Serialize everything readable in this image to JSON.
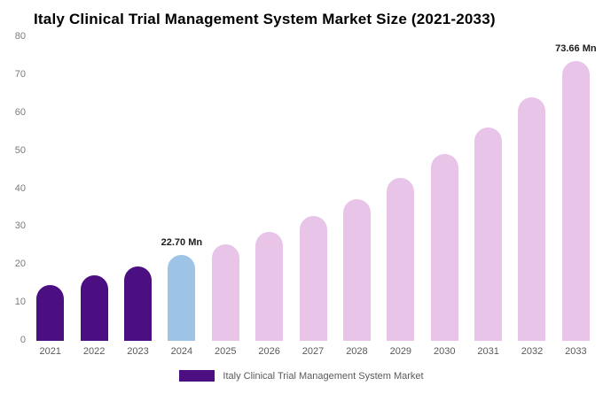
{
  "title": "Italy Clinical Trial Management System Market Size (2021-2033)",
  "chart_data": {
    "type": "bar",
    "title": "Italy Clinical Trial Management System Market Size (2021-2033)",
    "categories": [
      "2021",
      "2022",
      "2023",
      "2024",
      "2025",
      "2026",
      "2027",
      "2028",
      "2029",
      "2030",
      "2031",
      "2032",
      "2033"
    ],
    "values": [
      14.8,
      17.2,
      19.6,
      22.7,
      25.4,
      28.6,
      32.9,
      37.4,
      43.0,
      49.1,
      56.1,
      64.1,
      73.66
    ],
    "unit": "Mn",
    "bar_colors": [
      "#4B0F82",
      "#4B0F82",
      "#4B0F82",
      "#9DC3E6",
      "#E8C4E8",
      "#E8C4E8",
      "#E8C4E8",
      "#E8C4E8",
      "#E8C4E8",
      "#E8C4E8",
      "#E8C4E8",
      "#E8C4E8",
      "#E8C4E8"
    ],
    "annotations": [
      {
        "category": "2024",
        "text": "22.70 Mn"
      },
      {
        "category": "2033",
        "text": "73.66 Mn"
      }
    ],
    "ylim": [
      0,
      80
    ],
    "yticks": [
      0,
      10,
      20,
      30,
      40,
      50,
      60,
      70,
      80
    ],
    "grid": false,
    "xlabel": "",
    "ylabel": "",
    "legend_position": "bottom",
    "legend": [
      {
        "label": "Italy Clinical Trial Management System Market",
        "color": "#4B0F82"
      }
    ]
  },
  "colors": {
    "historical": "#4B0F82",
    "current_year": "#9DC3E6",
    "forecast": "#E8C4E8"
  }
}
